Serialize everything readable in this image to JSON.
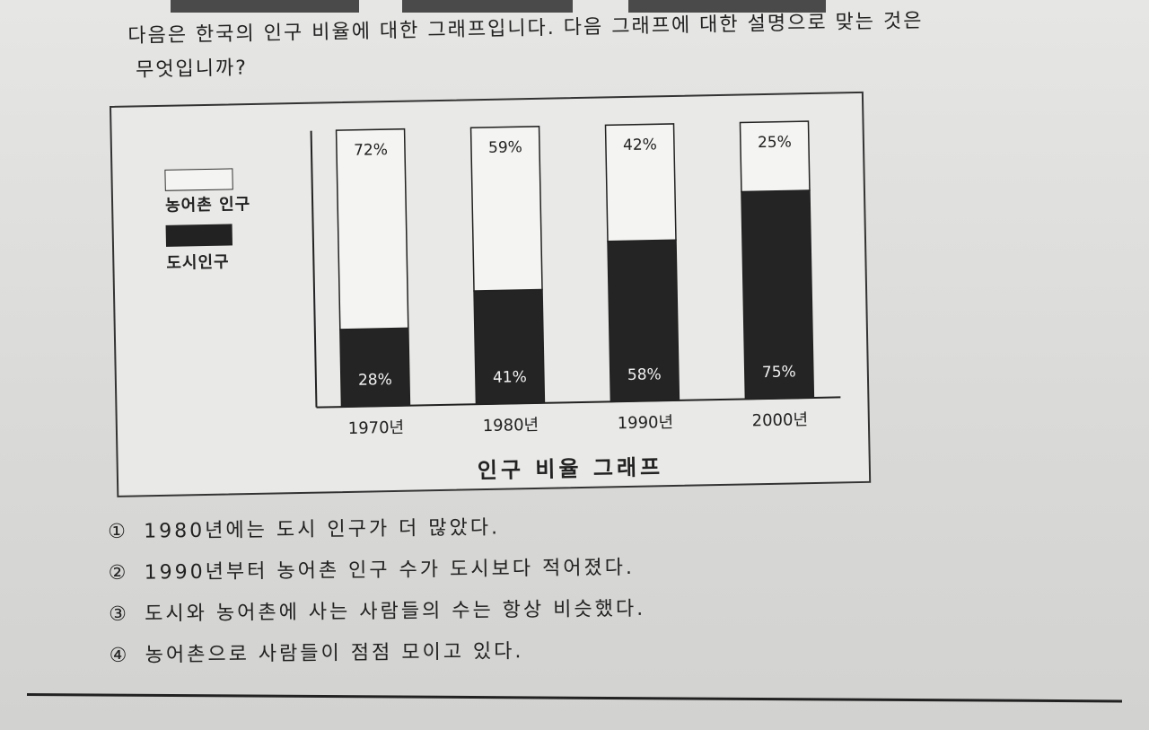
{
  "question": {
    "line1": "다음은 한국의 인구 비율에 대한 그래프입니다. 다음 그래프에 대한 설명으로 맞는 것은",
    "line2": "무엇입니까?"
  },
  "legend": {
    "rural_label": "농어촌 인구",
    "urban_label": "도시인구"
  },
  "chart_data": {
    "type": "bar",
    "stacked": true,
    "title": "인구 비율 그래프",
    "categories": [
      "1970년",
      "1980년",
      "1990년",
      "2000년"
    ],
    "series": [
      {
        "name": "도시인구",
        "values": [
          28,
          41,
          58,
          75
        ],
        "labels": [
          "28%",
          "41%",
          "58%",
          "75%"
        ],
        "color": "#242424"
      },
      {
        "name": "농어촌 인구",
        "values": [
          72,
          59,
          42,
          25
        ],
        "labels": [
          "72%",
          "59%",
          "42%",
          "25%"
        ],
        "color": "#f4f4f2"
      }
    ],
    "ylim": [
      0,
      100
    ],
    "grid": false,
    "legend_position": "left"
  },
  "choices": [
    {
      "num": "①",
      "text": "1980년에는 도시 인구가 더 많았다."
    },
    {
      "num": "②",
      "text": "1990년부터 농어촌 인구 수가 도시보다 적어졌다."
    },
    {
      "num": "③",
      "text": "도시와 농어촌에 사는 사람들의 수는 항상 비슷했다."
    },
    {
      "num": "④",
      "text": "농어촌으로 사람들이 점점 모이고 있다."
    }
  ]
}
